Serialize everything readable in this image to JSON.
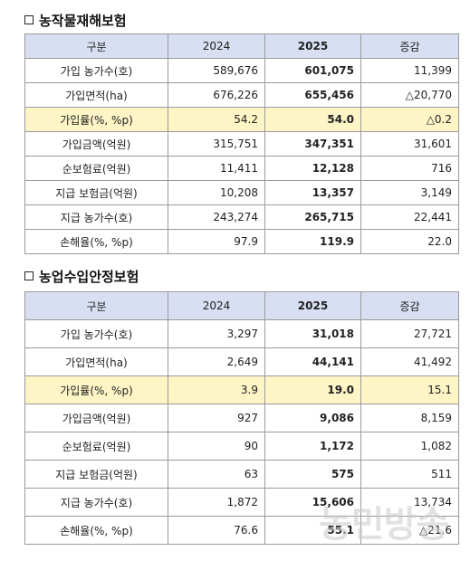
{
  "sections": [
    {
      "title": "농작물재해보험",
      "headers": [
        "구분",
        "2024",
        "2025",
        "증감"
      ],
      "rows": [
        {
          "label": "가입 농가수(호)",
          "y2024": "589,676",
          "y2025": "601,075",
          "diff": "11,399",
          "highlight": false
        },
        {
          "label": "가입면적(ha)",
          "y2024": "676,226",
          "y2025": "655,456",
          "diff": "△20,770",
          "highlight": false
        },
        {
          "label": "가입률(%, %p)",
          "y2024": "54.2",
          "y2025": "54.0",
          "diff": "△0.2",
          "highlight": true
        },
        {
          "label": "가입금액(억원)",
          "y2024": "315,751",
          "y2025": "347,351",
          "diff": "31,601",
          "highlight": false
        },
        {
          "label": "순보험료(억원)",
          "y2024": "11,411",
          "y2025": "12,128",
          "diff": "716",
          "highlight": false
        },
        {
          "label": "지급 보험금(억원)",
          "y2024": "10,208",
          "y2025": "13,357",
          "diff": "3,149",
          "highlight": false
        },
        {
          "label": "지급 농가수(호)",
          "y2024": "243,274",
          "y2025": "265,715",
          "diff": "22,441",
          "highlight": false
        },
        {
          "label": "손해율(%, %p)",
          "y2024": "97.9",
          "y2025": "119.9",
          "diff": "22.0",
          "highlight": false
        }
      ]
    },
    {
      "title": "농업수입안정보험",
      "headers": [
        "구분",
        "2024",
        "2025",
        "증감"
      ],
      "rows": [
        {
          "label": "가입 농가수(호)",
          "y2024": "3,297",
          "y2025": "31,018",
          "diff": "27,721",
          "highlight": false
        },
        {
          "label": "가입면적(ha)",
          "y2024": "2,649",
          "y2025": "44,141",
          "diff": "41,492",
          "highlight": false
        },
        {
          "label": "가입률(%, %p)",
          "y2024": "3.9",
          "y2025": "19.0",
          "diff": "15.1",
          "highlight": true
        },
        {
          "label": "가입금액(억원)",
          "y2024": "927",
          "y2025": "9,086",
          "diff": "8,159",
          "highlight": false
        },
        {
          "label": "순보험료(억원)",
          "y2024": "90",
          "y2025": "1,172",
          "diff": "1,082",
          "highlight": false
        },
        {
          "label": "지급 보험금(억원)",
          "y2024": "63",
          "y2025": "575",
          "diff": "511",
          "highlight": false
        },
        {
          "label": "지급 농가수(호)",
          "y2024": "1,872",
          "y2025": "15,606",
          "diff": "13,734",
          "highlight": false
        },
        {
          "label": "손해율(%, %p)",
          "y2024": "76.6",
          "y2025": "55.1",
          "diff": "△21.6",
          "highlight": false
        }
      ]
    }
  ],
  "watermark": "농민방송",
  "colors": {
    "header_bg": "#d9dff2",
    "highlight_bg": "#fdf5c6"
  }
}
